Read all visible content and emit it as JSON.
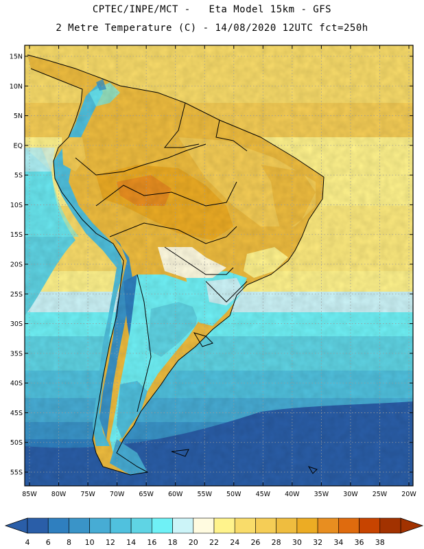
{
  "header": {
    "line1": "CPTEC/INPE/MCT -   Eta Model 15km - GFS",
    "line2": "2 Metre Temperature (C) - 14/08/2020 12UTC fct=250h"
  },
  "map": {
    "lat_labels": [
      {
        "lat": 15,
        "label": "15N"
      },
      {
        "lat": 10,
        "label": "10N"
      },
      {
        "lat": 5,
        "label": "5N"
      },
      {
        "lat": 0,
        "label": "EQ"
      },
      {
        "lat": -5,
        "label": "5S"
      },
      {
        "lat": -10,
        "label": "10S"
      },
      {
        "lat": -15,
        "label": "15S"
      },
      {
        "lat": -20,
        "label": "20S"
      },
      {
        "lat": -25,
        "label": "25S"
      },
      {
        "lat": -30,
        "label": "30S"
      },
      {
        "lat": -35,
        "label": "35S"
      },
      {
        "lat": -40,
        "label": "40S"
      },
      {
        "lat": -45,
        "label": "45S"
      },
      {
        "lat": -50,
        "label": "50S"
      },
      {
        "lat": -55,
        "label": "55S"
      }
    ],
    "lon_labels": [
      {
        "lon": -85,
        "label": "85W"
      },
      {
        "lon": -80,
        "label": "80W"
      },
      {
        "lon": -75,
        "label": "75W"
      },
      {
        "lon": -70,
        "label": "70W"
      },
      {
        "lon": -65,
        "label": "65W"
      },
      {
        "lon": -60,
        "label": "60W"
      },
      {
        "lon": -55,
        "label": "55W"
      },
      {
        "lon": -50,
        "label": "50W"
      },
      {
        "lon": -45,
        "label": "45W"
      },
      {
        "lon": -40,
        "label": "40W"
      },
      {
        "lon": -35,
        "label": "35W"
      },
      {
        "lon": -30,
        "label": "30W"
      },
      {
        "lon": -25,
        "label": "25W"
      },
      {
        "lon": -20,
        "label": "20W"
      }
    ]
  },
  "colorbar": {
    "labels": [
      "4",
      "6",
      "8",
      "10",
      "12",
      "14",
      "16",
      "18",
      "20",
      "22",
      "24",
      "26",
      "28",
      "30",
      "32",
      "34",
      "36",
      "38"
    ],
    "colors": [
      "#2a5ea8",
      "#2f7fbf",
      "#3a94c8",
      "#47acd4",
      "#50c1de",
      "#5fd4e4",
      "#6ff1f6",
      "#ccf4f8",
      "#fffbe0",
      "#fff38c",
      "#f9dc6a",
      "#f5cd56",
      "#efbd3f",
      "#ecac24",
      "#e88e20",
      "#df6b0e",
      "#c74400",
      "#a23200"
    ]
  }
}
